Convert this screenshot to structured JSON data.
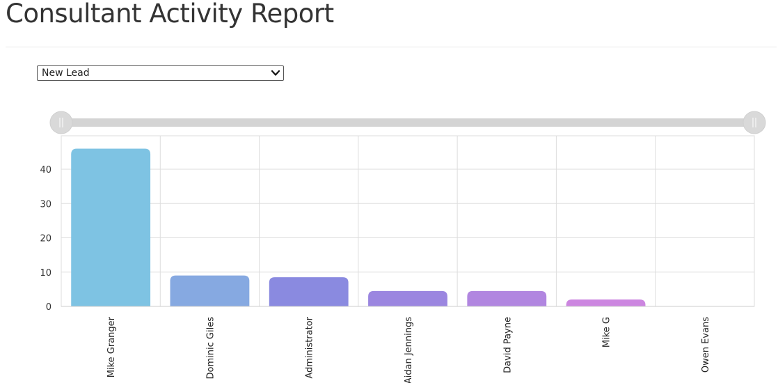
{
  "page": {
    "title": "Consultant Activity Report"
  },
  "filter": {
    "selected": "New Lead",
    "icon": "chevron-down-icon"
  },
  "range_slider": {
    "left_handle_icon": "grip-icon",
    "right_handle_icon": "grip-icon"
  },
  "chart_data": {
    "type": "bar",
    "categories": [
      "Mike Granger",
      "Dominic Giles",
      "Administrator",
      "Aidan Jennings",
      "David Payne",
      "Mike G",
      "Owen Evans"
    ],
    "values": [
      46,
      9,
      8.5,
      4.5,
      4.5,
      2,
      0
    ],
    "title": "",
    "xlabel": "",
    "ylabel": "",
    "ylim": [
      0,
      50
    ],
    "yticks": [
      0,
      10,
      20,
      30,
      40
    ],
    "grid": true,
    "colors": [
      "#7ec3e3",
      "#86a9e1",
      "#8a8ae0",
      "#9b86e0",
      "#b186e0",
      "#cc86e0",
      "#d886dd"
    ]
  }
}
